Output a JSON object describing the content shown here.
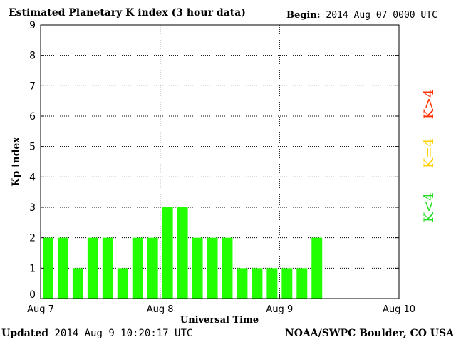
{
  "header": {
    "title": "Estimated Planetary K index (3 hour data)",
    "begin_label": "Begin:",
    "begin_value": "2014 Aug 07 0000 UTC"
  },
  "footer": {
    "updated_label": "Updated",
    "updated_value": "2014 Aug  9 10:20:17 UTC",
    "org": "NOAA/SWPC Boulder, CO USA"
  },
  "legend": [
    {
      "label": "K>4",
      "color": "#ff3000"
    },
    {
      "label": "K=4",
      "color": "#ffd000"
    },
    {
      "label": "K<4",
      "color": "#22dd22"
    }
  ],
  "chart_data": {
    "type": "bar",
    "title": "Estimated Planetary K index (3 hour data)",
    "xlabel": "Universal Time",
    "ylabel": "Kp index",
    "ylim": [
      0,
      9
    ],
    "yticks": [
      0,
      1,
      2,
      3,
      4,
      5,
      6,
      7,
      8,
      9
    ],
    "xticks": [
      "Aug 7",
      "Aug 8",
      "Aug 9",
      "Aug 10"
    ],
    "slots": 24,
    "grid": true,
    "bar_color": "#22ff00",
    "values": [
      2,
      2,
      1,
      2,
      2,
      1,
      2,
      2,
      3,
      3,
      2,
      2,
      2,
      1,
      1,
      1,
      1,
      1,
      2
    ]
  }
}
